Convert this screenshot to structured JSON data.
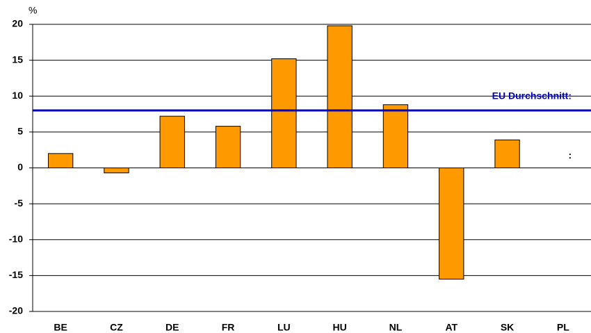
{
  "chart_data": {
    "type": "bar",
    "y_label": "%",
    "categories": [
      "BE",
      "CZ",
      "DE",
      "FR",
      "LU",
      "HU",
      "NL",
      "AT",
      "SK",
      "PL"
    ],
    "values": [
      2.0,
      -0.7,
      7.2,
      5.8,
      15.2,
      19.8,
      8.8,
      -15.5,
      3.9,
      null
    ],
    "value_labels": [
      null,
      null,
      null,
      null,
      null,
      null,
      null,
      null,
      null,
      ":"
    ],
    "color": "#ff9900",
    "ylim": [
      -20,
      20
    ],
    "yticks": [
      -20,
      -15,
      -10,
      -5,
      0,
      5,
      10,
      15,
      20
    ],
    "grid": true,
    "reference_line": {
      "value": 8,
      "label": "EU Durchschnitt:",
      "color": "#0000cc"
    }
  }
}
